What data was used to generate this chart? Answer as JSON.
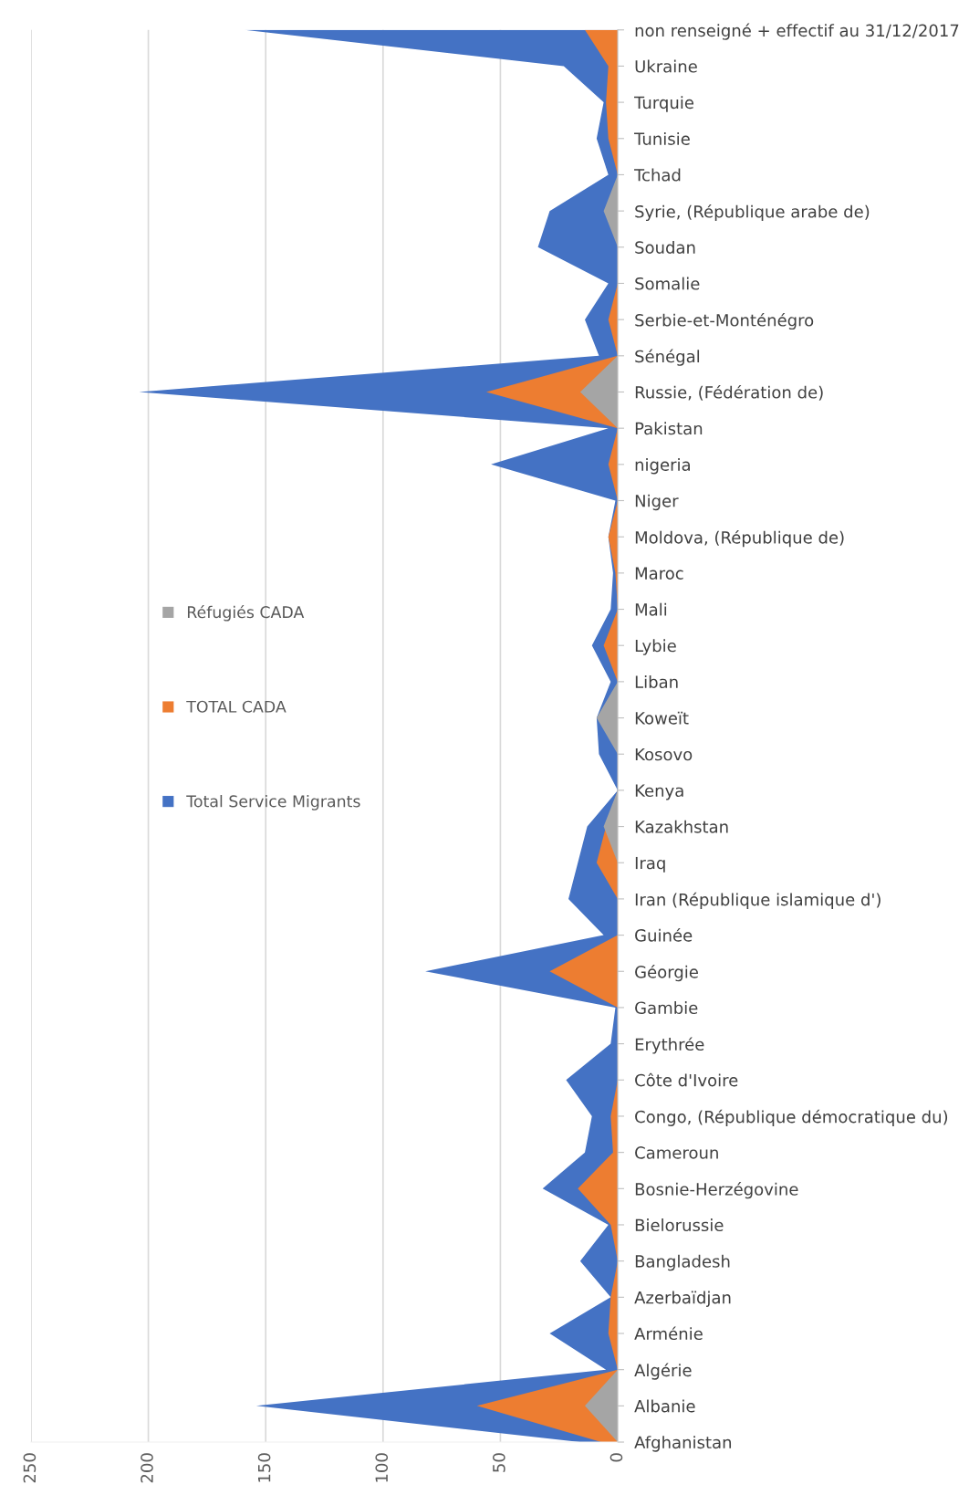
{
  "chart_data": {
    "type": "area",
    "orientation": "horizontal",
    "categories": [
      "non renseigné + effectif au 31/12/2017",
      "Ukraine",
      "Turquie",
      "Tunisie",
      "Tchad",
      "Syrie, (République arabe de)",
      "Soudan",
      "Somalie",
      "Serbie-et-Monténégro",
      "Sénégal",
      "Russie, (Fédération de)",
      "Pakistan",
      "nigeria",
      "Niger",
      "Moldova, (République de)",
      "Maroc",
      "Mali",
      "Lybie",
      "Liban",
      "Koweït",
      "Kosovo",
      "Kenya",
      "Kazakhstan",
      "Iraq",
      "Iran (République islamique d')",
      "Guinée",
      "Géorgie",
      "Gambie",
      "Erythrée",
      "Côte d'Ivoire",
      "Congo, (République démocratique du)",
      "Cameroun",
      "Bosnie-Herzégovine",
      "Bielorussie",
      "Bangladesh",
      "Azerbaïdjan",
      "Arménie",
      "Algérie",
      "Albanie",
      "Afghanistan"
    ],
    "series": [
      {
        "name": "Total Service Migrants",
        "color": "#4472c4",
        "values": [
          159,
          23,
          6,
          9,
          4,
          29,
          34,
          4,
          14,
          8,
          204,
          4,
          54,
          1,
          4,
          2,
          3,
          11,
          3,
          9,
          8,
          0,
          13,
          17,
          21,
          6,
          82,
          1,
          3,
          22,
          11,
          14,
          32,
          4,
          16,
          3,
          29,
          5,
          154,
          16
        ]
      },
      {
        "name": "TOTAL CADA",
        "color": "#ed7d31",
        "values": [
          14,
          4,
          5,
          4,
          0,
          0,
          0,
          0,
          4,
          0,
          56,
          0,
          4,
          0,
          4,
          1,
          0,
          6,
          0,
          0,
          0,
          0,
          5,
          9,
          0,
          0,
          29,
          0,
          0,
          0,
          3,
          2,
          17,
          3,
          0,
          3,
          4,
          0,
          60,
          7
        ]
      },
      {
        "name": "Réfugiés CADA",
        "color": "#a5a5a5",
        "values": [
          0,
          0,
          0,
          0,
          0,
          6,
          0,
          0,
          0,
          0,
          16,
          0,
          0,
          0,
          0,
          0,
          0,
          0,
          0,
          9,
          0,
          0,
          6,
          0,
          0,
          0,
          0,
          0,
          0,
          0,
          0,
          0,
          0,
          0,
          0,
          0,
          0,
          0,
          14,
          0
        ]
      }
    ],
    "xlim": [
      250,
      0
    ],
    "xticks": [
      0,
      50,
      100,
      150,
      200,
      250
    ],
    "grid": "x",
    "legend": "left"
  }
}
